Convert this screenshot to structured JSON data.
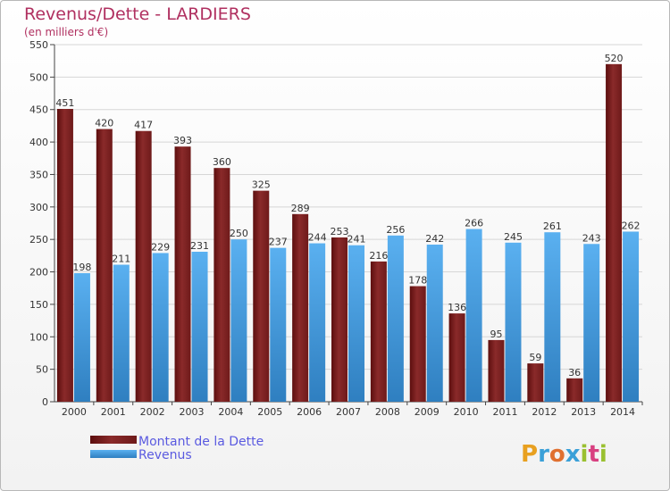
{
  "chart_data": {
    "type": "bar",
    "title": "Revenus/Dette - LARDIERS",
    "subtitle": "(en milliers d'€)",
    "categories": [
      "2000",
      "2001",
      "2002",
      "2003",
      "2004",
      "2005",
      "2006",
      "2007",
      "2008",
      "2009",
      "2010",
      "2011",
      "2012",
      "2013",
      "2014"
    ],
    "series": [
      {
        "name": "Montant de la Dette",
        "color": "#7a1c1c",
        "values": [
          451,
          420,
          417,
          393,
          360,
          325,
          289,
          253,
          216,
          178,
          136,
          95,
          59,
          36,
          520
        ]
      },
      {
        "name": "Revenus",
        "color": "#4aa3e8",
        "values": [
          198,
          211,
          229,
          231,
          250,
          237,
          244,
          241,
          256,
          242,
          266,
          245,
          261,
          243,
          262
        ]
      }
    ],
    "ylim": [
      0,
      550
    ],
    "yticks": [
      0,
      50,
      100,
      150,
      200,
      250,
      300,
      350,
      400,
      450,
      500,
      550
    ],
    "grid": true,
    "legend_position": "bottom-left"
  },
  "logo": {
    "letters": [
      "P",
      "r",
      "o",
      "x",
      "i",
      "t",
      "i"
    ],
    "colors": [
      "#e8a020",
      "#3aa0d8",
      "#e07030",
      "#3aa0d8",
      "#9ac030",
      "#d84080",
      "#9ac030"
    ]
  }
}
